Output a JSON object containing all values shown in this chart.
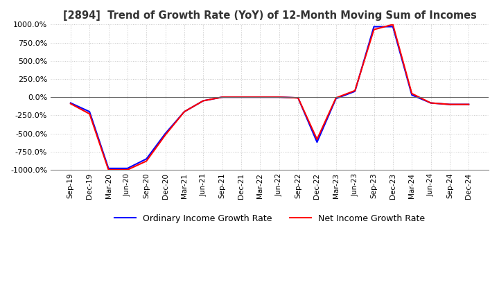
{
  "title": "[2894]  Trend of Growth Rate (YoY) of 12-Month Moving Sum of Incomes",
  "ylim": [
    -1000,
    1000
  ],
  "y_ticks": [
    1000,
    750,
    500,
    250,
    0,
    -250,
    -500,
    -750,
    -1000
  ],
  "background_color": "#ffffff",
  "grid_color": "#c8c8c8",
  "ordinary_color": "#0000ff",
  "net_color": "#ff0000",
  "legend_ordinary": "Ordinary Income Growth Rate",
  "legend_net": "Net Income Growth Rate",
  "x_labels": [
    "Sep-19",
    "Dec-19",
    "Mar-20",
    "Jun-20",
    "Sep-20",
    "Dec-20",
    "Mar-21",
    "Jun-21",
    "Sep-21",
    "Dec-21",
    "Mar-22",
    "Jun-22",
    "Sep-22",
    "Dec-22",
    "Mar-23",
    "Jun-23",
    "Sep-23",
    "Dec-23",
    "Mar-24",
    "Jun-24",
    "Sep-24",
    "Dec-24"
  ],
  "ordinary_y": [
    -80,
    -200,
    -980,
    -980,
    -850,
    -500,
    -200,
    -50,
    0,
    0,
    0,
    0,
    -10,
    -620,
    -20,
    80,
    970,
    970,
    30,
    -80,
    -100,
    -100
  ],
  "net_y": [
    -90,
    -230,
    -1000,
    -1000,
    -880,
    -520,
    -200,
    -50,
    0,
    0,
    0,
    0,
    -10,
    -580,
    -10,
    90,
    930,
    1000,
    50,
    -80,
    -100,
    -100
  ]
}
